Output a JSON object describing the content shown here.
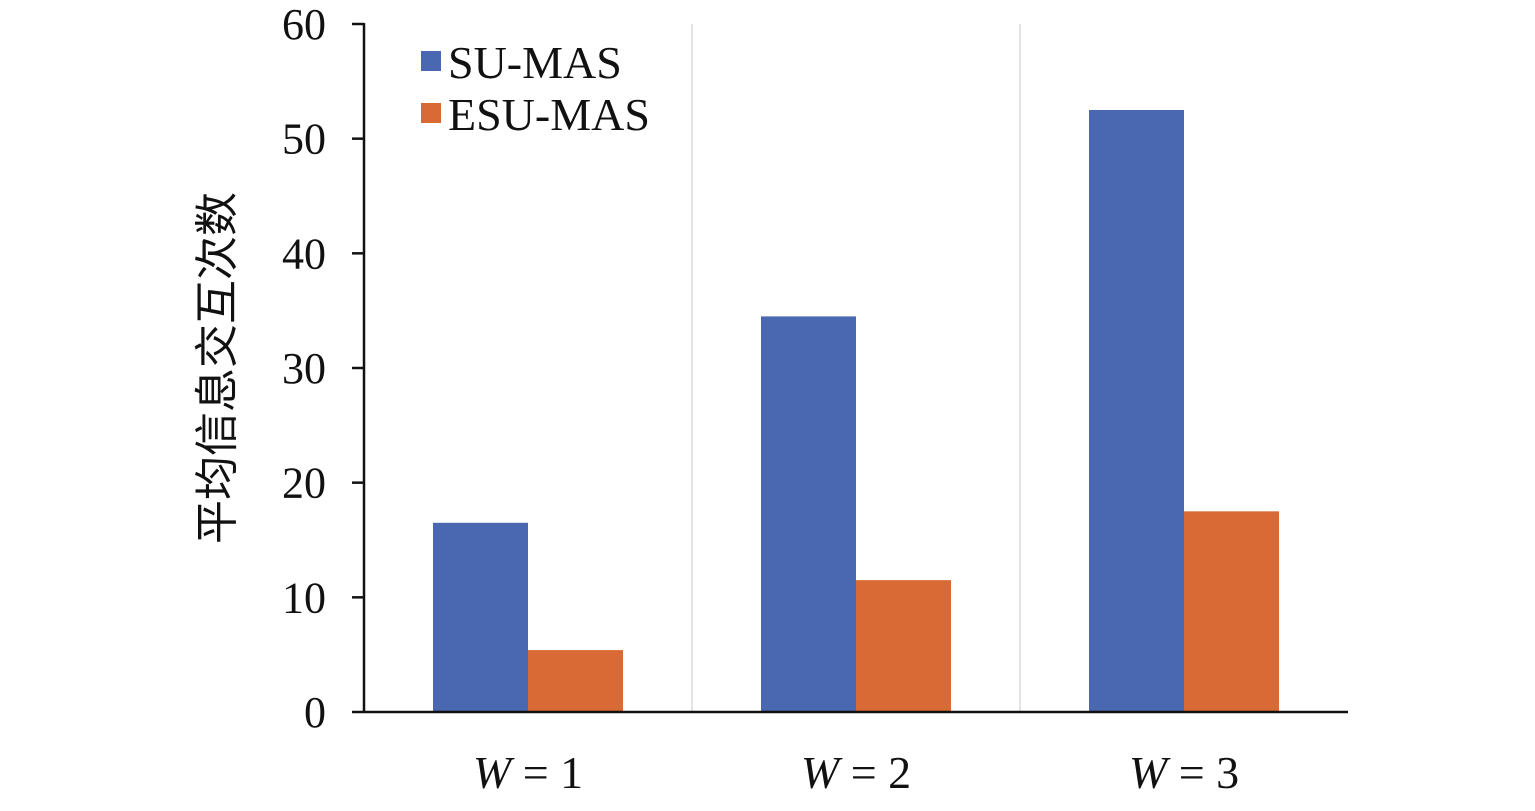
{
  "chart_data": {
    "type": "bar",
    "title": "",
    "xlabel": "",
    "ylabel": "平均信息交互次数",
    "ylim": [
      0,
      60
    ],
    "yticks": [
      0,
      10,
      20,
      30,
      40,
      50,
      60
    ],
    "categories": [
      {
        "var": "W",
        "eq": " = 1"
      },
      {
        "var": "W",
        "eq": " = 2"
      },
      {
        "var": "W",
        "eq": " = 3"
      }
    ],
    "series": [
      {
        "name": "SU-MAS",
        "color": "#4a67b1",
        "values": [
          16.5,
          34.5,
          52.5
        ]
      },
      {
        "name": "ESU-MAS",
        "color": "#d96a35",
        "values": [
          5.4,
          11.5,
          17.5
        ]
      }
    ],
    "legend_position": "top-left",
    "grid": false
  }
}
